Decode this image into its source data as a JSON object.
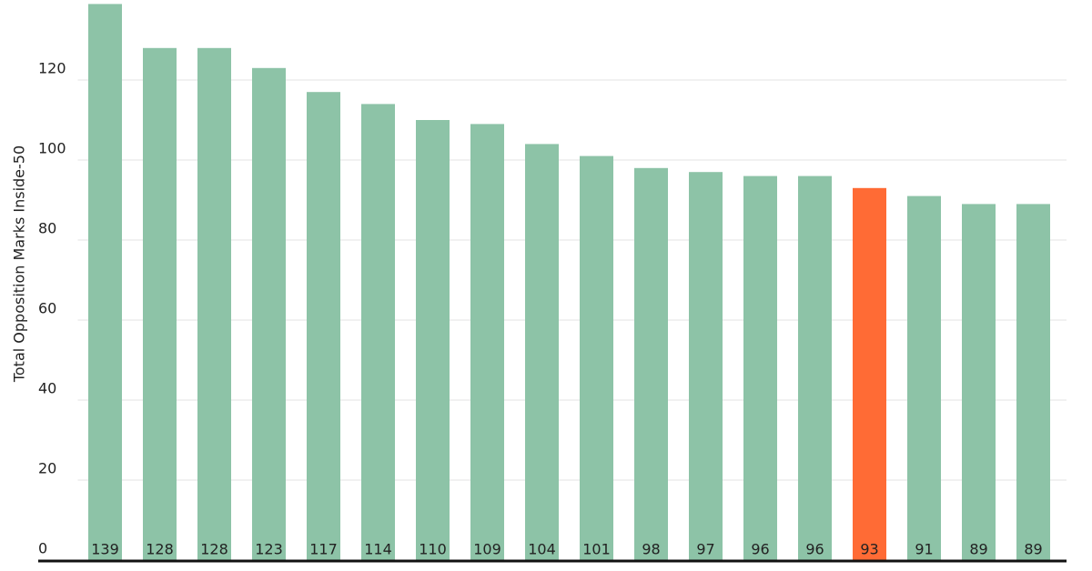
{
  "chart_data": {
    "type": "bar",
    "y_label": "Total Opposition Marks Inside-50",
    "values": [
      139,
      128,
      128,
      123,
      117,
      114,
      110,
      109,
      104,
      101,
      98,
      97,
      96,
      96,
      93,
      91,
      89,
      89
    ],
    "colors": [
      "#8dc3a7",
      "#8dc3a7",
      "#8dc3a7",
      "#8dc3a7",
      "#8dc3a7",
      "#8dc3a7",
      "#8dc3a7",
      "#8dc3a7",
      "#8dc3a7",
      "#8dc3a7",
      "#8dc3a7",
      "#8dc3a7",
      "#8dc3a7",
      "#8dc3a7",
      "#ff6b35",
      "#8dc3a7",
      "#8dc3a7",
      "#8dc3a7"
    ],
    "ylim": [
      0,
      140
    ],
    "yticks": [
      0,
      20,
      40,
      60,
      80,
      100,
      120
    ],
    "grid": true
  }
}
